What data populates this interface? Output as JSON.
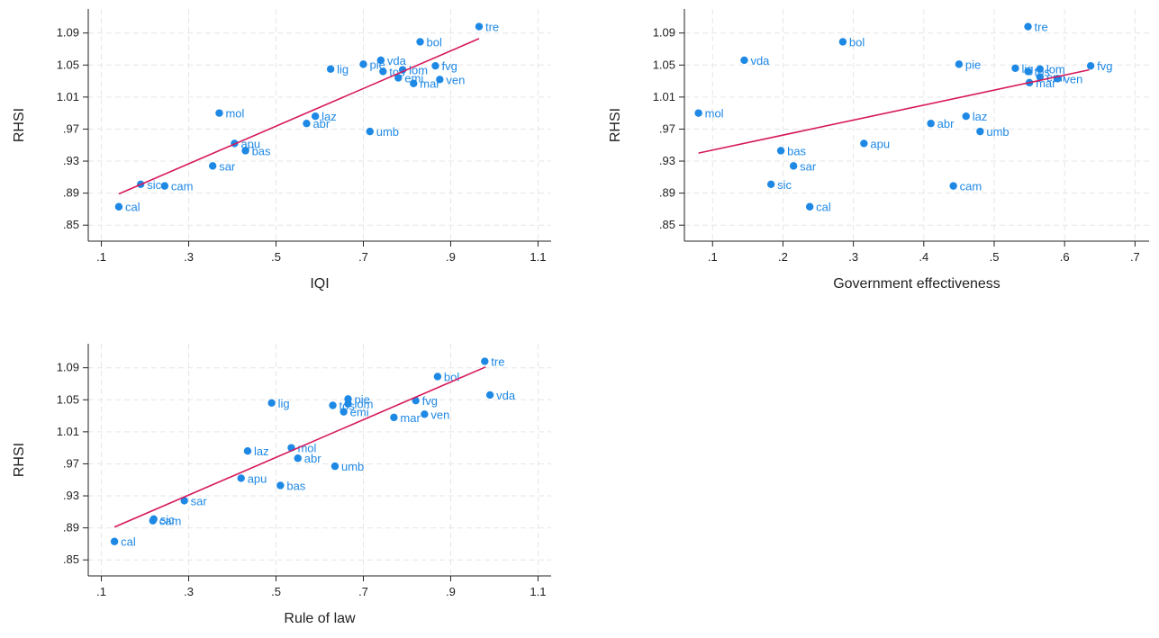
{
  "styles": {
    "point_color": "#1e88e5",
    "fit_color": "#d6185a",
    "grid_color": "#e6e6e6",
    "axis_color": "#222222"
  },
  "chart_data": [
    {
      "type": "scatter",
      "xlabel": "IQI",
      "ylabel": "RHSI",
      "xticks": [
        ".1",
        ".3",
        ".5",
        ".7",
        ".9",
        "1.1"
      ],
      "xtick_values": [
        0.1,
        0.3,
        0.5,
        0.7,
        0.9,
        1.1
      ],
      "yticks": [
        ".85",
        ".89",
        ".93",
        ".97",
        "1.01",
        "1.05",
        "1.09"
      ],
      "ytick_values": [
        0.85,
        0.89,
        0.93,
        0.97,
        1.01,
        1.05,
        1.09
      ],
      "xlim": [
        0.07,
        1.13
      ],
      "ylim": [
        0.83,
        1.12
      ],
      "grid": true,
      "fit_line": [
        [
          0.14,
          0.889
        ],
        [
          0.965,
          1.083
        ]
      ],
      "points": [
        {
          "label": "tre",
          "x": 0.965,
          "y": 1.098
        },
        {
          "label": "bol",
          "x": 0.83,
          "y": 1.079
        },
        {
          "label": "vda",
          "x": 0.74,
          "y": 1.056
        },
        {
          "label": "pie",
          "x": 0.7,
          "y": 1.051
        },
        {
          "label": "fvg",
          "x": 0.865,
          "y": 1.049
        },
        {
          "label": "lig",
          "x": 0.625,
          "y": 1.045
        },
        {
          "label": "tos",
          "x": 0.745,
          "y": 1.042
        },
        {
          "label": "lom",
          "x": 0.79,
          "y": 1.044
        },
        {
          "label": "emi",
          "x": 0.78,
          "y": 1.034
        },
        {
          "label": "ven",
          "x": 0.875,
          "y": 1.032
        },
        {
          "label": "mar",
          "x": 0.815,
          "y": 1.027
        },
        {
          "label": "mol",
          "x": 0.37,
          "y": 0.99
        },
        {
          "label": "laz",
          "x": 0.59,
          "y": 0.986
        },
        {
          "label": "abr",
          "x": 0.57,
          "y": 0.977
        },
        {
          "label": "umb",
          "x": 0.715,
          "y": 0.967
        },
        {
          "label": "apu",
          "x": 0.405,
          "y": 0.952
        },
        {
          "label": "bas",
          "x": 0.43,
          "y": 0.943
        },
        {
          "label": "sar",
          "x": 0.355,
          "y": 0.924
        },
        {
          "label": "sic",
          "x": 0.19,
          "y": 0.901
        },
        {
          "label": "cam",
          "x": 0.245,
          "y": 0.899
        },
        {
          "label": "cal",
          "x": 0.14,
          "y": 0.873
        }
      ]
    },
    {
      "type": "scatter",
      "xlabel": "Government effectiveness",
      "ylabel": "RHSI",
      "xticks": [
        ".1",
        ".2",
        ".3",
        ".4",
        ".5",
        ".6",
        ".7"
      ],
      "xtick_values": [
        0.1,
        0.2,
        0.3,
        0.4,
        0.5,
        0.6,
        0.7
      ],
      "yticks": [
        ".85",
        ".89",
        ".93",
        ".97",
        "1.01",
        "1.05",
        "1.09"
      ],
      "ytick_values": [
        0.85,
        0.89,
        0.93,
        0.97,
        1.01,
        1.05,
        1.09
      ],
      "xlim": [
        0.06,
        0.72
      ],
      "ylim": [
        0.83,
        1.12
      ],
      "grid": true,
      "fit_line": [
        [
          0.08,
          0.94
        ],
        [
          0.635,
          1.044
        ]
      ],
      "points": [
        {
          "label": "tre",
          "x": 0.548,
          "y": 1.098
        },
        {
          "label": "bol",
          "x": 0.285,
          "y": 1.079
        },
        {
          "label": "vda",
          "x": 0.145,
          "y": 1.056
        },
        {
          "label": "pie",
          "x": 0.45,
          "y": 1.051
        },
        {
          "label": "fvg",
          "x": 0.637,
          "y": 1.049
        },
        {
          "label": "lig",
          "x": 0.53,
          "y": 1.046
        },
        {
          "label": "tos",
          "x": 0.548,
          "y": 1.042
        },
        {
          "label": "lom",
          "x": 0.565,
          "y": 1.045
        },
        {
          "label": "emi",
          "x": 0.565,
          "y": 1.035
        },
        {
          "label": "ven",
          "x": 0.59,
          "y": 1.033
        },
        {
          "label": "mar",
          "x": 0.55,
          "y": 1.028
        },
        {
          "label": "mol",
          "x": 0.08,
          "y": 0.99
        },
        {
          "label": "laz",
          "x": 0.46,
          "y": 0.986
        },
        {
          "label": "abr",
          "x": 0.41,
          "y": 0.977
        },
        {
          "label": "umb",
          "x": 0.48,
          "y": 0.967
        },
        {
          "label": "apu",
          "x": 0.315,
          "y": 0.952
        },
        {
          "label": "bas",
          "x": 0.197,
          "y": 0.943
        },
        {
          "label": "sar",
          "x": 0.215,
          "y": 0.924
        },
        {
          "label": "sic",
          "x": 0.183,
          "y": 0.901
        },
        {
          "label": "cam",
          "x": 0.442,
          "y": 0.899
        },
        {
          "label": "cal",
          "x": 0.238,
          "y": 0.873
        }
      ]
    },
    {
      "type": "scatter",
      "xlabel": "Rule of law",
      "ylabel": "RHSI",
      "xticks": [
        ".1",
        ".3",
        ".5",
        ".7",
        ".9",
        "1.1"
      ],
      "xtick_values": [
        0.1,
        0.3,
        0.5,
        0.7,
        0.9,
        1.1
      ],
      "yticks": [
        ".85",
        ".89",
        ".93",
        ".97",
        "1.01",
        "1.05",
        "1.09"
      ],
      "ytick_values": [
        0.85,
        0.89,
        0.93,
        0.97,
        1.01,
        1.05,
        1.09
      ],
      "xlim": [
        0.07,
        1.13
      ],
      "ylim": [
        0.83,
        1.12
      ],
      "grid": true,
      "fit_line": [
        [
          0.13,
          0.891
        ],
        [
          0.98,
          1.091
        ]
      ],
      "points": [
        {
          "label": "tre",
          "x": 0.978,
          "y": 1.098
        },
        {
          "label": "bol",
          "x": 0.87,
          "y": 1.079
        },
        {
          "label": "vda",
          "x": 0.99,
          "y": 1.056
        },
        {
          "label": "pie",
          "x": 0.665,
          "y": 1.051
        },
        {
          "label": "fvg",
          "x": 0.82,
          "y": 1.049
        },
        {
          "label": "lig",
          "x": 0.49,
          "y": 1.046
        },
        {
          "label": "tos",
          "x": 0.63,
          "y": 1.043
        },
        {
          "label": "lom",
          "x": 0.665,
          "y": 1.045
        },
        {
          "label": "emi",
          "x": 0.655,
          "y": 1.035
        },
        {
          "label": "ven",
          "x": 0.84,
          "y": 1.032
        },
        {
          "label": "mar",
          "x": 0.77,
          "y": 1.028
        },
        {
          "label": "mol",
          "x": 0.535,
          "y": 0.99
        },
        {
          "label": "laz",
          "x": 0.435,
          "y": 0.986
        },
        {
          "label": "abr",
          "x": 0.55,
          "y": 0.977
        },
        {
          "label": "umb",
          "x": 0.635,
          "y": 0.967
        },
        {
          "label": "apu",
          "x": 0.42,
          "y": 0.952
        },
        {
          "label": "bas",
          "x": 0.51,
          "y": 0.943
        },
        {
          "label": "sar",
          "x": 0.29,
          "y": 0.924
        },
        {
          "label": "sic",
          "x": 0.22,
          "y": 0.901
        },
        {
          "label": "cam",
          "x": 0.218,
          "y": 0.899
        },
        {
          "label": "cal",
          "x": 0.13,
          "y": 0.873
        }
      ]
    }
  ]
}
